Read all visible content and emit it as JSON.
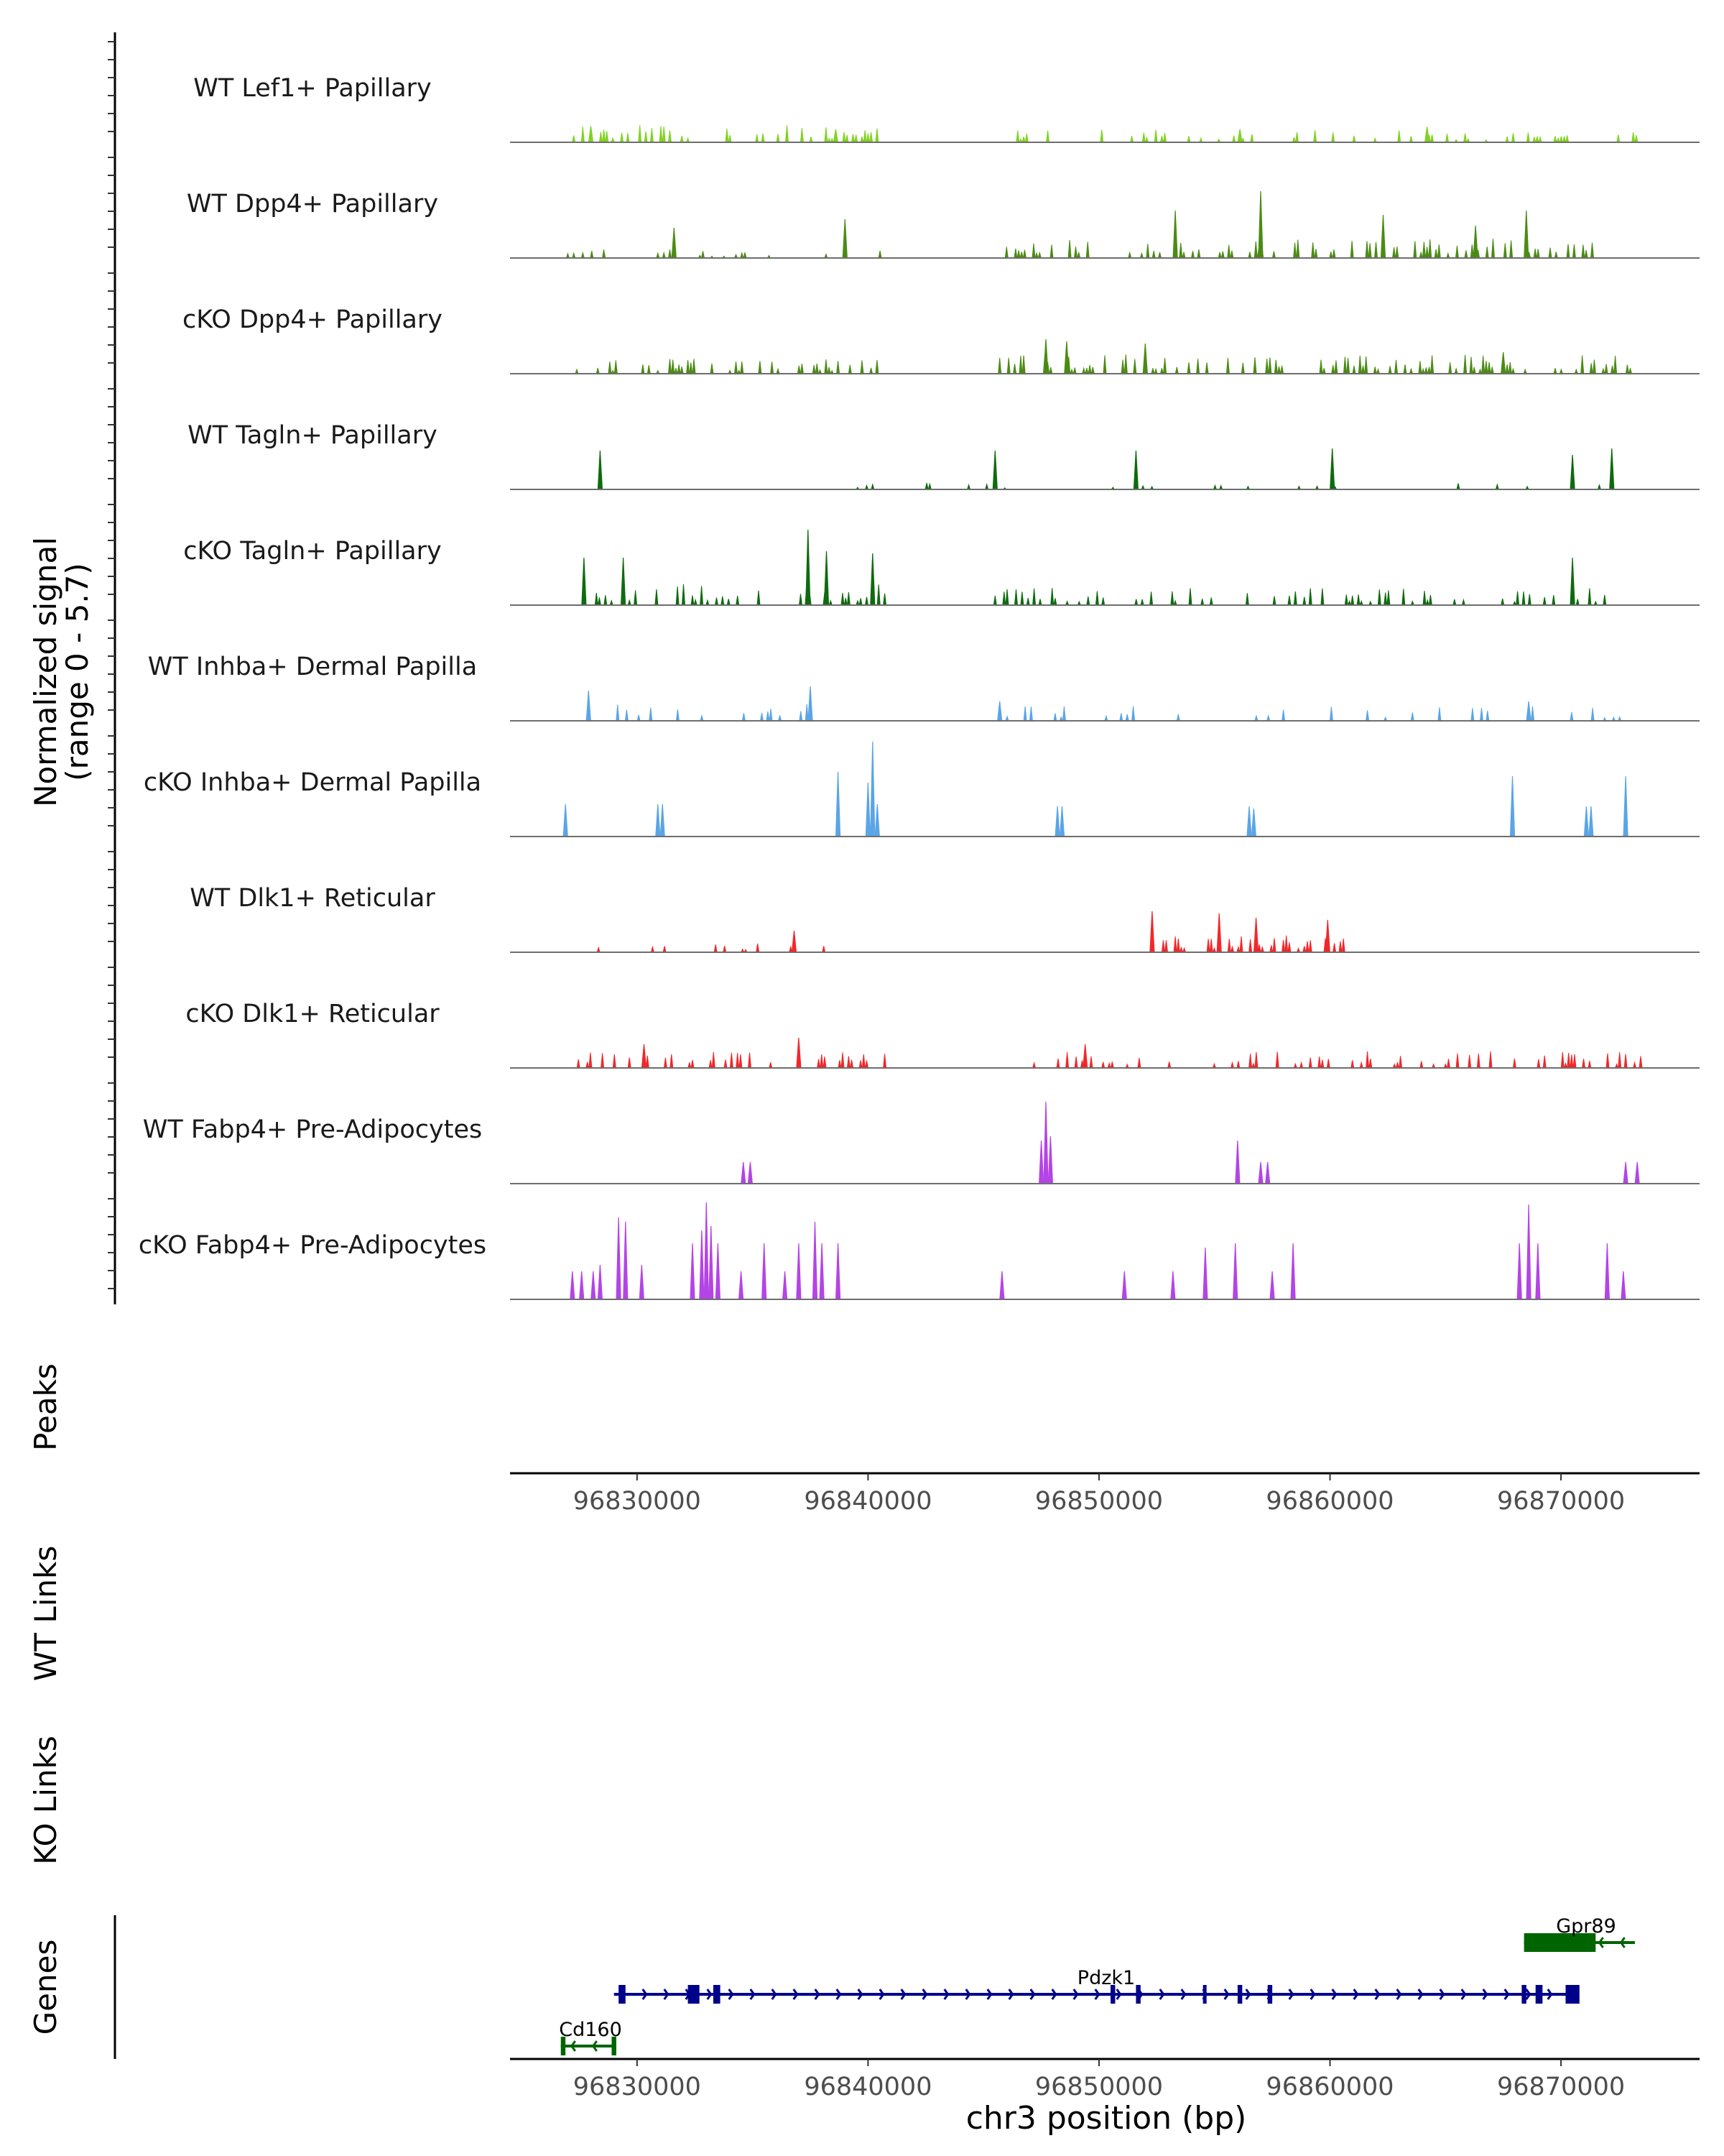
{
  "chart_data": {
    "type": "area",
    "title": "",
    "region": "chr3",
    "xlabel": "chr3 position (bp)",
    "xlim": [
      96824500,
      96876000
    ],
    "x_ticks": [
      96830000,
      96840000,
      96850000,
      96860000,
      96870000
    ],
    "x_tick_labels": [
      "96830000",
      "96840000",
      "96850000",
      "96860000",
      "96870000"
    ],
    "ylabel_line1": "Normalized signal",
    "ylabel_line2": "(range 0 - 5.7)",
    "ylim": [
      0,
      5.7
    ],
    "series": [
      {
        "name": "WT Lef1+ Papillary",
        "color": "#7fd320",
        "clusters": [
          [
            96827000,
            96840700,
            0.8,
            0.25
          ],
          [
            96845700,
            96873500,
            0.6,
            0.22
          ]
        ],
        "peaks": [
          [
            96828000,
            0.75
          ],
          [
            96838600,
            0.6
          ],
          [
            96856100,
            0.6
          ],
          [
            96864200,
            0.72
          ]
        ]
      },
      {
        "name": "WT Dpp4+ Papillary",
        "color": "#4b8b14",
        "clusters": [
          [
            96827000,
            96840700,
            0.4,
            0.15
          ],
          [
            96846000,
            96871500,
            0.9,
            0.3
          ]
        ],
        "peaks": [
          [
            96831600,
            1.4
          ],
          [
            96839000,
            1.8
          ],
          [
            96853300,
            2.2
          ],
          [
            96857000,
            3.1
          ],
          [
            96862300,
            2.0
          ],
          [
            96868500,
            2.2
          ],
          [
            96866300,
            1.5
          ]
        ]
      },
      {
        "name": "cKO Dpp4+ Papillary",
        "color": "#4b8b14",
        "clusters": [
          [
            96827000,
            96840700,
            0.7,
            0.35
          ],
          [
            96845700,
            96873500,
            0.9,
            0.35
          ]
        ],
        "peaks": [
          [
            96847700,
            1.6
          ],
          [
            96848600,
            1.5
          ],
          [
            96852000,
            1.4
          ],
          [
            96867500,
            1.0
          ]
        ]
      },
      {
        "name": "WT Tagln+ Papillary",
        "color": "#0e6b0e",
        "clusters": [
          [
            96827200,
            96873200,
            0.3,
            0.06
          ]
        ],
        "peaks": [
          [
            96828400,
            1.8
          ],
          [
            96845500,
            1.8
          ],
          [
            96851600,
            1.8
          ],
          [
            96860100,
            1.9
          ],
          [
            96870500,
            1.6
          ],
          [
            96872200,
            1.9
          ]
        ]
      },
      {
        "name": "cKO Tagln+ Papillary",
        "color": "#0e6b0e",
        "clusters": [
          [
            96827200,
            96840800,
            1.0,
            0.3
          ],
          [
            96845500,
            96873500,
            0.8,
            0.28
          ]
        ],
        "peaks": [
          [
            96827700,
            2.2
          ],
          [
            96829400,
            2.2
          ],
          [
            96837400,
            3.5
          ],
          [
            96838200,
            2.5
          ],
          [
            96840200,
            2.4
          ],
          [
            96870500,
            2.2
          ]
        ]
      },
      {
        "name": "WT Inhba+ Dermal Papilla",
        "color": "#5aa5e6",
        "clusters": [
          [
            96827600,
            96838800,
            0.8,
            0.2
          ],
          [
            96845500,
            96873100,
            0.7,
            0.14
          ]
        ],
        "peaks": [
          [
            96827900,
            1.4
          ],
          [
            96837500,
            1.6
          ],
          [
            96845700,
            0.9
          ],
          [
            96868600,
            0.9
          ]
        ]
      },
      {
        "name": "cKO Inhba+ Dermal Papilla",
        "color": "#5aa5e6",
        "clusters": [],
        "peaks": [
          [
            96826900,
            1.5
          ],
          [
            96830900,
            1.5
          ],
          [
            96831100,
            1.5
          ],
          [
            96838700,
            3.0
          ],
          [
            96840000,
            2.5
          ],
          [
            96840200,
            4.4
          ],
          [
            96840400,
            1.5
          ],
          [
            96848200,
            1.4
          ],
          [
            96848400,
            1.4
          ],
          [
            96856500,
            1.4
          ],
          [
            96856700,
            1.3
          ],
          [
            96867900,
            2.8
          ],
          [
            96871100,
            1.4
          ],
          [
            96871300,
            1.4
          ],
          [
            96872800,
            2.8
          ]
        ]
      },
      {
        "name": "WT Dlk1+ Reticular",
        "color": "#f2272a",
        "clusters": [
          [
            96828200,
            96838300,
            0.45,
            0.1
          ],
          [
            96852000,
            96860800,
            0.8,
            0.38
          ]
        ],
        "peaks": [
          [
            96852300,
            1.9
          ],
          [
            96855200,
            1.8
          ],
          [
            96856800,
            1.6
          ],
          [
            96859900,
            1.5
          ],
          [
            96836800,
            1.0
          ]
        ]
      },
      {
        "name": "cKO Dlk1+ Reticular",
        "color": "#f2272a",
        "clusters": [
          [
            96827200,
            96840800,
            0.8,
            0.3
          ],
          [
            96845500,
            96873500,
            0.8,
            0.28
          ]
        ],
        "peaks": [
          [
            96830300,
            1.1
          ],
          [
            96837000,
            1.4
          ],
          [
            96849400,
            1.1
          ]
        ]
      },
      {
        "name": "WT Fabp4+ Pre-Adipocytes",
        "color": "#b444e6",
        "clusters": [],
        "peaks": [
          [
            96834600,
            1.0
          ],
          [
            96834900,
            1.0
          ],
          [
            96847500,
            2.0
          ],
          [
            96847700,
            3.8
          ],
          [
            96847900,
            2.2
          ],
          [
            96856000,
            2.0
          ],
          [
            96857000,
            1.0
          ],
          [
            96857300,
            1.0
          ],
          [
            96872800,
            1.0
          ],
          [
            96873300,
            1.0
          ]
        ]
      },
      {
        "name": "cKO Fabp4+ Pre-Adipocytes",
        "color": "#b444e6",
        "clusters": [],
        "peaks": [
          [
            96827200,
            1.3
          ],
          [
            96827600,
            1.3
          ],
          [
            96828100,
            1.3
          ],
          [
            96828400,
            1.6
          ],
          [
            96829200,
            3.8
          ],
          [
            96829500,
            3.6
          ],
          [
            96830200,
            1.6
          ],
          [
            96832400,
            2.6
          ],
          [
            96832800,
            3.2
          ],
          [
            96833200,
            3.4
          ],
          [
            96833000,
            4.5
          ],
          [
            96833500,
            2.6
          ],
          [
            96834500,
            1.3
          ],
          [
            96835500,
            2.6
          ],
          [
            96836400,
            1.3
          ],
          [
            96837000,
            2.6
          ],
          [
            96837700,
            3.6
          ],
          [
            96838000,
            2.6
          ],
          [
            96838700,
            2.6
          ],
          [
            96845800,
            1.3
          ],
          [
            96851100,
            1.3
          ],
          [
            96853200,
            1.3
          ],
          [
            96854600,
            2.4
          ],
          [
            96855900,
            2.6
          ],
          [
            96857500,
            1.3
          ],
          [
            96858400,
            2.6
          ],
          [
            96868200,
            2.6
          ],
          [
            96868600,
            4.4
          ],
          [
            96869000,
            2.6
          ],
          [
            96872000,
            2.6
          ],
          [
            96872700,
            1.3
          ]
        ]
      }
    ],
    "peaks_track_label": "Peaks",
    "links_tracks": [
      {
        "name": "WT Links"
      },
      {
        "name": "KO Links"
      }
    ],
    "genes_track_label": "Genes",
    "genes": [
      {
        "name": "Gpr89",
        "strand": "-",
        "start": 96868400,
        "end": 96873200,
        "color": "#006400",
        "row": 0,
        "exons": [
          [
            96868400,
            96871500
          ]
        ]
      },
      {
        "name": "Pdzk1",
        "strand": "+",
        "start": 96829000,
        "end": 96870700,
        "color": "#00008b",
        "row": 1,
        "exons": [
          [
            96829200,
            96829500
          ],
          [
            96832200,
            96832700
          ],
          [
            96833300,
            96833600
          ],
          [
            96850500,
            96850700
          ],
          [
            96851600,
            96851800
          ],
          [
            96854500,
            96854600
          ],
          [
            96856000,
            96856200
          ],
          [
            96857300,
            96857500
          ],
          [
            96868300,
            96868500
          ],
          [
            96868900,
            96869200
          ],
          [
            96870200,
            96870800
          ]
        ]
      },
      {
        "name": "Cd160",
        "strand": "-",
        "start": 96826700,
        "end": 96829100,
        "color": "#006400",
        "row": 2,
        "exons": [
          [
            96826700,
            96826900
          ],
          [
            96828900,
            96829100
          ]
        ]
      }
    ]
  }
}
